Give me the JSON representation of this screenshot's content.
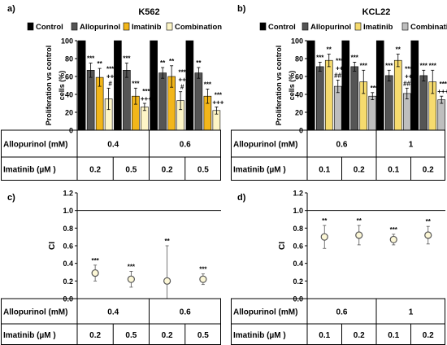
{
  "colors": {
    "control": "#000000",
    "allopurinol": "#555555",
    "imatinib": "#F2B61A",
    "combination_a": "#FDF5C6",
    "imatinib_b": "#F6DB6E",
    "combination_b": "#BEBEBE",
    "ci_marker_fill": "#FCF7D6"
  },
  "legend": [
    "Control",
    "Allopurinol",
    "Imatinib",
    "Combination"
  ],
  "table_labels": {
    "row1": "Allopurinol (mM)",
    "row2": "Imatinib (µM )"
  },
  "chart_data": [
    {
      "panel": "a)",
      "type": "bar",
      "title": "K562",
      "ylabel": "Proliferation vs control cells (%)",
      "ylim": [
        0,
        100
      ],
      "yticks": [
        0,
        20,
        40,
        60,
        80,
        100
      ],
      "grid": false,
      "legend_position": "top",
      "series": [
        {
          "name": "Control",
          "values": [
            100,
            100,
            100,
            100
          ],
          "errors": [
            0,
            0,
            0,
            0
          ]
        },
        {
          "name": "Allopurinol",
          "values": [
            67,
            67,
            64,
            64
          ],
          "errors": [
            8,
            8,
            6,
            6
          ]
        },
        {
          "name": "Imatinib",
          "values": [
            59,
            38,
            60,
            38
          ],
          "errors": [
            10,
            9,
            12,
            8
          ]
        },
        {
          "name": "Combination",
          "values": [
            35,
            26,
            33,
            22
          ],
          "errors": [
            12,
            4,
            10,
            4
          ]
        }
      ],
      "annotations": [
        [
          "***",
          "**",
          "***",
          "++",
          "#"
        ],
        [
          "***",
          "***",
          "***",
          "+++"
        ],
        [
          "**",
          "**",
          "***",
          "++",
          "#"
        ],
        [
          "**",
          "***",
          "***",
          "+++"
        ]
      ],
      "table": {
        "allopurinol": [
          "0.4",
          "0.6"
        ],
        "imatinib": [
          "0.2",
          "0.5",
          "0.2",
          "0.5"
        ]
      }
    },
    {
      "panel": "b)",
      "type": "bar",
      "title": "KCL22",
      "ylabel": "Proliferation vs control cells (%)",
      "ylim": [
        0,
        100
      ],
      "yticks": [
        0,
        20,
        40,
        60,
        80,
        100
      ],
      "grid": false,
      "legend_position": "top",
      "series": [
        {
          "name": "Control",
          "values": [
            100,
            100,
            100,
            100
          ],
          "errors": [
            0,
            0,
            0,
            0
          ]
        },
        {
          "name": "Allopurinol",
          "values": [
            71,
            71,
            61,
            61
          ],
          "errors": [
            5,
            5,
            6,
            6
          ]
        },
        {
          "name": "Imatinib",
          "values": [
            78,
            54,
            78,
            54
          ],
          "errors": [
            7,
            13,
            7,
            13
          ]
        },
        {
          "name": "Combination",
          "values": [
            49,
            38,
            41,
            34
          ],
          "errors": [
            7,
            4,
            6,
            4
          ]
        }
      ],
      "annotations": [
        [
          "***",
          "**",
          "***",
          "++",
          "###"
        ],
        [
          "***",
          "***",
          "***"
        ],
        [
          "***",
          "**",
          "***",
          "++",
          "###"
        ],
        [
          "***",
          "***",
          "***",
          "+++"
        ]
      ],
      "table": {
        "allopurinol": [
          "0.6",
          "1"
        ],
        "imatinib": [
          "0.1",
          "0.2",
          "0.1",
          "0.2"
        ]
      }
    },
    {
      "panel": "c)",
      "type": "scatter",
      "ylabel": "CI",
      "ylim": [
        0,
        1.2
      ],
      "yticks": [
        0,
        0.2,
        0.4,
        0.6,
        0.8,
        1.0,
        1.2
      ],
      "reference_line": 1.0,
      "grid": false,
      "points": [
        {
          "y": 0.29,
          "error": 0.09,
          "label": "***"
        },
        {
          "y": 0.22,
          "error": 0.09,
          "label": "***"
        },
        {
          "y": 0.2,
          "error": 0.4,
          "label": "**"
        },
        {
          "y": 0.22,
          "error": 0.06,
          "label": "***"
        }
      ],
      "table": {
        "allopurinol": [
          "0.4",
          "0.6"
        ],
        "imatinib": [
          "0.2",
          "0.5",
          "0.2",
          "0.5"
        ]
      }
    },
    {
      "panel": "d)",
      "type": "scatter",
      "ylabel": "CI",
      "ylim": [
        0,
        1.2
      ],
      "yticks": [
        0,
        0.2,
        0.4,
        0.6,
        0.8,
        1.0,
        1.2
      ],
      "reference_line": 1.0,
      "grid": false,
      "points": [
        {
          "y": 0.7,
          "error": 0.13,
          "label": "**"
        },
        {
          "y": 0.72,
          "error": 0.11,
          "label": "**"
        },
        {
          "y": 0.67,
          "error": 0.06,
          "label": "***"
        },
        {
          "y": 0.72,
          "error": 0.1,
          "label": "**"
        }
      ],
      "table": {
        "allopurinol": [
          "0.6",
          "1"
        ],
        "imatinib": [
          "0.1",
          "0.2",
          "0.1",
          "0.2"
        ]
      }
    }
  ]
}
